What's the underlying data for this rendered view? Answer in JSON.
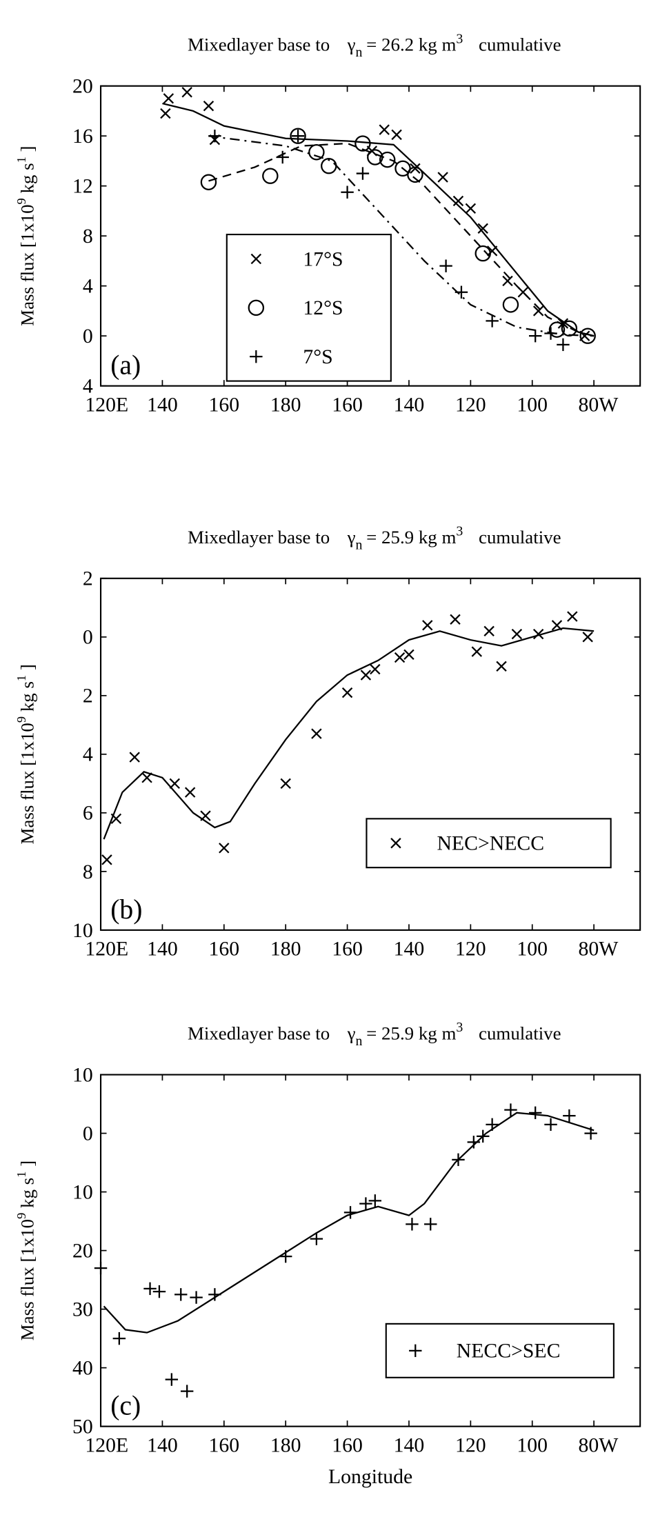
{
  "chart_data": [
    {
      "type": "scatter",
      "panel": "(a)",
      "title": {
        "prefix": "Mixedlayer base to",
        "symbol": "γ",
        "subscript": "n",
        "value": "= 26.2 kg m",
        "superscript": "3",
        "suffix": "cumulative"
      },
      "ylabel": {
        "main": "Mass flux [1x10",
        "sup1": "9",
        "mid": " kg s",
        "sup2": "1",
        "end": " ]"
      },
      "xlim": [
        120,
        295
      ],
      "ylim": [
        -4,
        20
      ],
      "xticks": [
        {
          "value": 120,
          "label": "120E"
        },
        140,
        160,
        180,
        {
          "value": 200,
          "label": "160"
        },
        {
          "value": 220,
          "label": "140"
        },
        {
          "value": 240,
          "label": "120"
        },
        {
          "value": 260,
          "label": "100"
        },
        {
          "value": 280,
          "label": "80W"
        }
      ],
      "yticks": [
        20,
        16,
        12,
        8,
        4,
        0,
        {
          "value": -4,
          "label": "4"
        }
      ],
      "series": [
        {
          "name": "17°S",
          "marker": "x",
          "color": "#000",
          "line_style": "solid",
          "x": [
            141,
            142,
            148,
            155,
            157,
            208,
            212,
            216,
            222,
            231,
            236,
            240,
            244,
            247,
            252,
            257,
            262,
            270,
            277
          ],
          "values": [
            17.8,
            19,
            19.5,
            18.4,
            15.7,
            14.8,
            16.5,
            16.1,
            13.4,
            12.7,
            10.8,
            10.2,
            8.6,
            6.8,
            4.4,
            3.5,
            2,
            1,
            0
          ],
          "fit_x": [
            140,
            150,
            160,
            180,
            200,
            215,
            225,
            240,
            255,
            265,
            275,
            280
          ],
          "fit_y": [
            18.6,
            18,
            16.8,
            15.8,
            15.6,
            15.3,
            13,
            9.5,
            5,
            2,
            0.3,
            0
          ]
        },
        {
          "name": "12°S",
          "marker": "o",
          "color": "#000",
          "line_style": "dashed",
          "x": [
            155,
            175,
            184,
            190,
            194,
            205,
            209,
            213,
            218,
            222,
            244,
            253,
            268,
            272,
            278
          ],
          "values": [
            12.3,
            12.8,
            16,
            14.7,
            13.6,
            15.4,
            14.3,
            14.1,
            13.4,
            12.9,
            6.6,
            2.5,
            0.5,
            0.6,
            0
          ],
          "fit_x": [
            155,
            170,
            185,
            200,
            215,
            225,
            240,
            255,
            265,
            275,
            280
          ],
          "fit_y": [
            12.4,
            13.5,
            15.2,
            15.4,
            14,
            12,
            8,
            4,
            1.5,
            0.3,
            0
          ]
        },
        {
          "name": "7°S",
          "marker": "+",
          "color": "#000",
          "line_style": "dashdot",
          "x": [
            157,
            179,
            184,
            200,
            205,
            232,
            237,
            247,
            261,
            266,
            270
          ],
          "values": [
            16,
            14.3,
            16,
            11.5,
            13,
            5.6,
            3.5,
            1.2,
            0,
            0.2,
            -0.7
          ],
          "fit_x": [
            155,
            180,
            195,
            210,
            225,
            240,
            255,
            270,
            280
          ],
          "fit_y": [
            16,
            15.2,
            14,
            10,
            6,
            2.5,
            0.7,
            0.1,
            0
          ]
        }
      ]
    },
    {
      "type": "scatter",
      "panel": "(b)",
      "title": {
        "prefix": "Mixedlayer base to",
        "symbol": "γ",
        "subscript": "n",
        "value": "= 25.9 kg m",
        "superscript": "3",
        "suffix": "cumulative"
      },
      "ylabel": {
        "main": "Mass flux [1x10",
        "sup1": "9",
        "mid": " kg s",
        "sup2": "1",
        "end": " ]"
      },
      "xlim": [
        120,
        295
      ],
      "ylim": [
        -10,
        2
      ],
      "xticks": [
        {
          "value": 120,
          "label": "120E"
        },
        140,
        160,
        180,
        {
          "value": 200,
          "label": "160"
        },
        {
          "value": 220,
          "label": "140"
        },
        {
          "value": 240,
          "label": "120"
        },
        {
          "value": 260,
          "label": "100"
        },
        {
          "value": 280,
          "label": "80W"
        }
      ],
      "yticks": [
        2,
        0,
        {
          "value": -2,
          "label": "2"
        },
        {
          "value": -4,
          "label": "4"
        },
        {
          "value": -6,
          "label": "6"
        },
        {
          "value": -8,
          "label": "8"
        },
        {
          "value": -10,
          "label": "10"
        }
      ],
      "series": [
        {
          "name": "NEC>NECC",
          "marker": "x",
          "color": "#000",
          "line_style": "solid",
          "x": [
            122,
            125,
            131,
            135,
            144,
            149,
            154,
            160,
            180,
            190,
            200,
            206,
            209,
            217,
            220,
            226,
            235,
            242,
            246,
            250,
            255,
            262,
            268,
            273,
            278
          ],
          "values": [
            -7.6,
            -6.2,
            -4.1,
            -4.8,
            -5,
            -5.3,
            -6.1,
            -7.2,
            -5,
            -3.3,
            -1.9,
            -1.3,
            -1.1,
            -0.7,
            -0.6,
            0.4,
            0.6,
            -0.5,
            0.2,
            -1,
            0.1,
            0.1,
            0.4,
            0.7,
            0
          ],
          "fit_x": [
            121,
            127,
            134,
            140,
            150,
            157,
            162,
            170,
            180,
            190,
            200,
            210,
            220,
            230,
            240,
            250,
            260,
            270,
            280
          ],
          "fit_y": [
            -6.9,
            -5.3,
            -4.6,
            -4.8,
            -6,
            -6.5,
            -6.3,
            -5,
            -3.5,
            -2.2,
            -1.3,
            -0.8,
            -0.1,
            0.2,
            -0.1,
            -0.3,
            0,
            0.3,
            0.2
          ]
        }
      ]
    },
    {
      "type": "scatter",
      "panel": "(c)",
      "title": {
        "prefix": "Mixedlayer base to",
        "symbol": "γ",
        "subscript": "n",
        "value": "= 25.9 kg m",
        "superscript": "3",
        "suffix": "cumulative"
      },
      "ylabel": {
        "main": "Mass flux [1x10",
        "sup1": "9",
        "mid": " kg s",
        "sup2": "1",
        "end": " ]"
      },
      "xlabel": "Longitude",
      "xlim": [
        120,
        295
      ],
      "ylim": [
        -50,
        10
      ],
      "xticks": [
        {
          "value": 120,
          "label": "120E"
        },
        140,
        160,
        180,
        {
          "value": 200,
          "label": "160"
        },
        {
          "value": 220,
          "label": "140"
        },
        {
          "value": 240,
          "label": "120"
        },
        {
          "value": 260,
          "label": "100"
        },
        {
          "value": 280,
          "label": "80W"
        }
      ],
      "yticks": [
        10,
        0,
        {
          "value": -10,
          "label": "10"
        },
        {
          "value": -20,
          "label": "20"
        },
        {
          "value": -30,
          "label": "30"
        },
        {
          "value": -40,
          "label": "40"
        },
        {
          "value": -50,
          "label": "50"
        }
      ],
      "series": [
        {
          "name": "NECC>SEC",
          "marker": "+",
          "color": "#000",
          "line_style": "solid",
          "x": [
            120,
            126,
            136,
            139,
            143,
            146,
            148,
            151,
            157,
            180,
            190,
            201,
            206,
            209,
            221,
            227,
            236,
            241,
            244,
            247,
            253,
            261,
            266,
            272,
            279
          ],
          "values": [
            -23,
            -35,
            -26.5,
            -27,
            -42,
            -27.5,
            -44,
            -28,
            -27.5,
            -21,
            -18,
            -13.5,
            -12,
            -11.5,
            -15.5,
            -15.5,
            -4.5,
            -1.5,
            -0.5,
            1.5,
            4,
            3.5,
            1.5,
            3,
            0
          ],
          "fit_x": [
            121,
            128,
            135,
            145,
            160,
            175,
            190,
            200,
            210,
            220,
            225,
            235,
            245,
            255,
            265,
            280
          ],
          "fit_y": [
            -29.5,
            -33.5,
            -34,
            -32,
            -27,
            -22,
            -17,
            -14,
            -12.5,
            -14,
            -12,
            -5,
            0,
            3.5,
            3,
            0.5
          ]
        }
      ]
    }
  ]
}
